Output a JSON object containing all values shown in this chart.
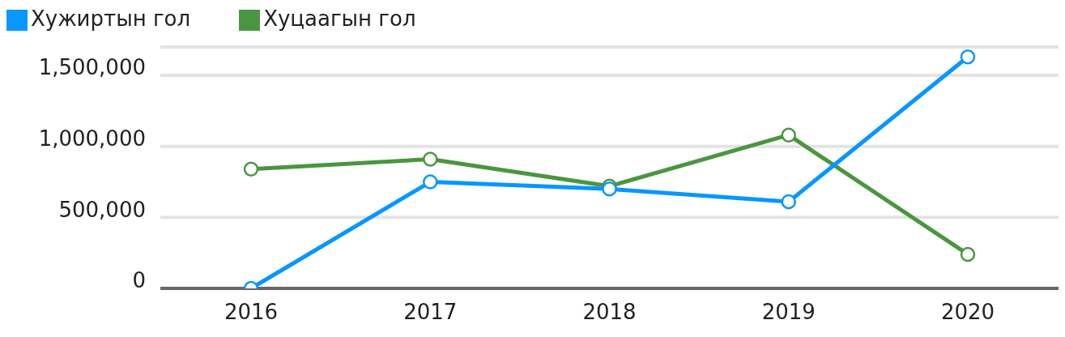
{
  "chart_data": {
    "type": "line",
    "categories": [
      "2016",
      "2017",
      "2018",
      "2019",
      "2020"
    ],
    "series": [
      {
        "name": "Хужиртын гол",
        "color": "#0896ff",
        "values": [
          0,
          750000,
          700000,
          610000,
          1630000
        ]
      },
      {
        "name": "Хуцаагын гол",
        "color": "#4a9640",
        "values": [
          840000,
          910000,
          720000,
          1080000,
          240000
        ]
      }
    ],
    "ylim": [
      0,
      1700000
    ],
    "yticks": [
      {
        "value": 0,
        "label": "0"
      },
      {
        "value": 500000,
        "label": "500,000"
      },
      {
        "value": 1000000,
        "label": "1,000,000"
      },
      {
        "value": 1500000,
        "label": "1,500,000"
      }
    ],
    "grid": "y",
    "legend": "top left",
    "marker": "circle",
    "line_style": "solid"
  }
}
